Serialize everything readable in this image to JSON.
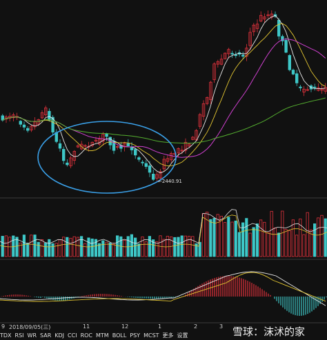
{
  "colors": {
    "background": "#111111",
    "up": "#e0323c",
    "down": "#3ec7c7",
    "ma_yellow": "#e6c832",
    "ma_magenta": "#d040d0",
    "ma_green": "#55b030",
    "ma_white": "#e8e8e8",
    "highlight_circle": "#3aa0e8"
  },
  "annotation": {
    "low_price_label": "←2440.91"
  },
  "x_axis": {
    "labels": [
      "9",
      "2018/09/05(三)",
      "11",
      "12",
      "1",
      "2",
      "3"
    ]
  },
  "indicator_tabs": [
    "TDX",
    "RSI",
    "WR",
    "SAR",
    "KDJ",
    "CCI",
    "ROC",
    "MTM",
    "BOLL",
    "PSY",
    "MCST",
    "更多",
    "设置"
  ],
  "watermark": "雪球：沫沭的家",
  "chart_data": {
    "type": "candlestick",
    "panels": [
      "price",
      "volume",
      "macd"
    ],
    "x_labels": [
      "9",
      "2018/09/05(三)",
      "11",
      "12",
      "1",
      "2",
      "3"
    ],
    "min_price_label": "2440.91",
    "features": {
      "moving_averages": 4,
      "highlighted_range": "oval around bottom consolidation",
      "volume_bars": true,
      "macd_histogram": true
    }
  }
}
